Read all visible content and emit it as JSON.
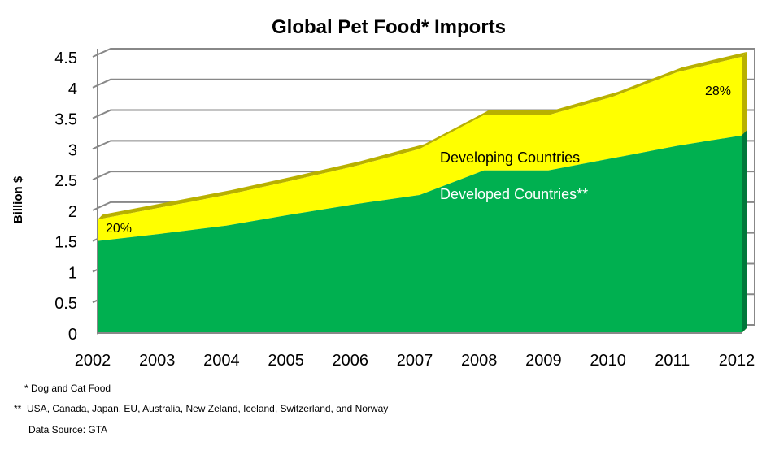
{
  "chart_data": {
    "type": "area",
    "stacked": true,
    "title": "Global Pet Food* Imports",
    "ylabel": "Billion $",
    "xlabel": "",
    "x": [
      2002,
      2003,
      2004,
      2005,
      2006,
      2007,
      2008,
      2009,
      2010,
      2011,
      2012
    ],
    "x_ticks": [
      "2002",
      "2003",
      "2004",
      "2005",
      "2006",
      "2007",
      "2008",
      "2009",
      "2010",
      "2011",
      "2012"
    ],
    "y_ticks": [
      "0",
      "0.5",
      "1",
      "1.5",
      "2",
      "2.5",
      "3",
      "3.5",
      "4",
      "4.5"
    ],
    "ylim": [
      0,
      4.5
    ],
    "grid": true,
    "legend": "none",
    "series": [
      {
        "name": "Developed Countries**",
        "color": "#00b050",
        "values": [
          1.5,
          1.62,
          1.75,
          1.93,
          2.1,
          2.25,
          2.65,
          2.65,
          2.85,
          3.05,
          3.22
        ]
      },
      {
        "name": "Developing Countries",
        "color": "#ffff00",
        "values": [
          0.35,
          0.43,
          0.5,
          0.55,
          0.62,
          0.75,
          0.9,
          0.9,
          1.0,
          1.2,
          1.28
        ]
      }
    ],
    "totals": [
      1.85,
      2.05,
      2.25,
      2.48,
      2.72,
      3.0,
      3.55,
      3.55,
      3.85,
      4.25,
      4.5
    ],
    "annotations": [
      "20%",
      "28%"
    ]
  },
  "footnotes": {
    "note1_marker": "*",
    "note1_text": "Dog and Cat Food",
    "note2_marker": "**",
    "note2_text": "USA, Canada, Japan, EU, Australia, New Zeland, Iceland, Switzerland, and Norway",
    "source": "Data Source: GTA"
  }
}
